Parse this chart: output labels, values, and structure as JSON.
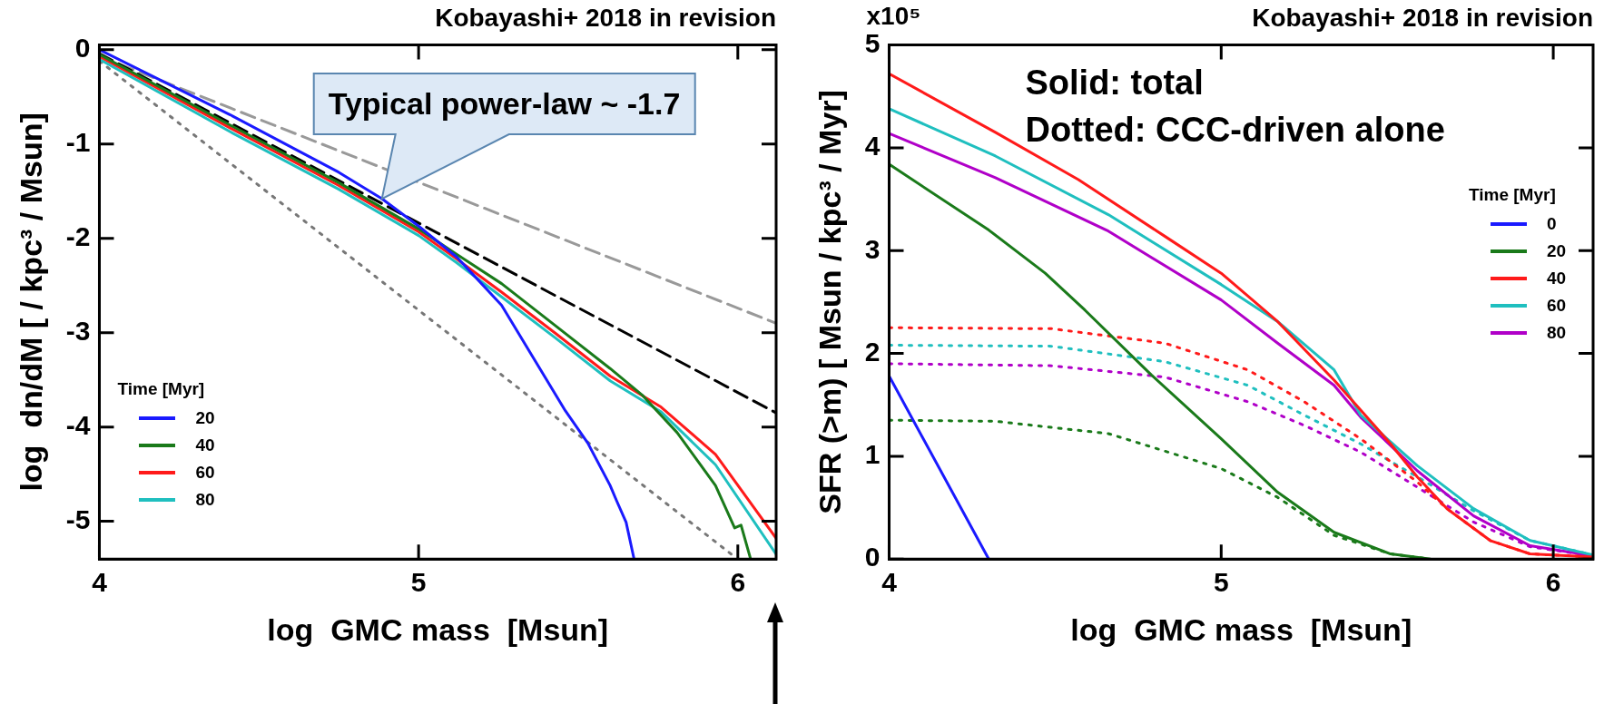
{
  "chart_data": [
    {
      "type": "line",
      "title": "Kobayashi+ 2018 in revision",
      "xlabel": "log  GMC mass  [Msun]",
      "ylabel": "log  dn/dM [ / kpc³ / Msun]",
      "legend_title": "Time [Myr]",
      "legend": "bottom left",
      "marker": "none",
      "xlim": [
        4,
        6.12
      ],
      "ylim": [
        -5.4,
        0.05
      ],
      "xticks": [
        4,
        5,
        6
      ],
      "yticks": [
        0,
        -1,
        -2,
        -3,
        -4,
        -5
      ],
      "annotations": [
        {
          "text": "Typical power-law ~ -1.7",
          "x": 4.885,
          "y": -1.58
        }
      ],
      "series": [
        {
          "name": "20",
          "color": "#1a1aff",
          "line_style": "solid",
          "x": [
            4,
            4.41,
            4.75,
            4.885,
            5.0,
            5.12,
            5.26,
            5.36,
            5.46,
            5.53,
            5.6,
            5.62,
            5.65,
            5.675
          ],
          "values": [
            0,
            -0.69,
            -1.3,
            -1.58,
            -1.87,
            -2.2,
            -2.71,
            -3.27,
            -3.83,
            -4.17,
            -4.62,
            -4.78,
            -5.01,
            -5.4
          ]
        },
        {
          "name": "40",
          "color": "#1a7a1a",
          "line_style": "solid",
          "x": [
            4,
            4.41,
            4.75,
            5,
            5.12,
            5.26,
            5.43,
            5.6,
            5.7,
            5.81,
            5.93,
            5.99,
            6.01,
            6.04
          ],
          "values": [
            -0.05,
            -0.8,
            -1.41,
            -1.9,
            -2.17,
            -2.48,
            -2.93,
            -3.38,
            -3.66,
            -4.06,
            -4.62,
            -5.07,
            -5.04,
            -5.4
          ]
        },
        {
          "name": "60",
          "color": "#ff1a1a",
          "line_style": "solid",
          "x": [
            4,
            4.41,
            4.75,
            5,
            5.12,
            5.26,
            5.43,
            5.6,
            5.76,
            5.93,
            6.12
          ],
          "values": [
            -0.07,
            -0.83,
            -1.44,
            -1.93,
            -2.22,
            -2.57,
            -3.01,
            -3.46,
            -3.79,
            -4.29,
            -5.18
          ]
        },
        {
          "name": "80",
          "color": "#1fbfbf",
          "line_style": "solid",
          "x": [
            4,
            4.41,
            4.75,
            5,
            5.12,
            5.26,
            5.43,
            5.6,
            5.76,
            5.93,
            6.12
          ],
          "values": [
            -0.1,
            -0.87,
            -1.48,
            -1.97,
            -2.26,
            -2.62,
            -3.06,
            -3.51,
            -3.84,
            -4.4,
            -5.35
          ]
        },
        {
          "color": "#000000",
          "line_style": "dashed",
          "x": [
            4,
            6.12
          ],
          "values": [
            -0.04,
            -3.85
          ]
        },
        {
          "color": "#999999",
          "line_style": "dashed",
          "x": [
            4,
            6.12
          ],
          "values": [
            -0.07,
            -2.9
          ]
        },
        {
          "color": "#777777",
          "line_style": "dotted",
          "x": [
            4,
            5.98
          ],
          "values": [
            -0.12,
            -5.35
          ]
        }
      ]
    },
    {
      "type": "line",
      "title": "Kobayashi+ 2018 in revision",
      "xlabel": "log  GMC mass  [Msun]",
      "ylabel": "SFR (>m) [ Msun / kpc³ / Myr]",
      "legend_title": "Time [Myr]",
      "legend": "right",
      "marker": "none",
      "xlim": [
        4,
        6.12
      ],
      "ylim": [
        0,
        5
      ],
      "xticks": [
        4,
        5,
        6
      ],
      "yticks": [
        0,
        1,
        2,
        3,
        4,
        5
      ],
      "annotations": [
        "x10⁵",
        "Solid: total",
        "Dotted: CCC-driven alone"
      ],
      "series": [
        {
          "name": "0",
          "color": "#1a1aff",
          "line_style": "solid",
          "x": [
            4,
            4.3
          ],
          "values": [
            1.78,
            0
          ]
        },
        {
          "name": "20",
          "color": "#1a7a1a",
          "line_style": "solid",
          "x": [
            4,
            4.3,
            4.47,
            4.59,
            4.79,
            5,
            5.17,
            5.34,
            5.51,
            5.63
          ],
          "values": [
            3.84,
            3.2,
            2.78,
            2.42,
            1.79,
            1.17,
            0.65,
            0.26,
            0.05,
            0
          ]
        },
        {
          "name": "40",
          "color": "#ff1a1a",
          "line_style": "solid",
          "x": [
            4,
            4.32,
            4.57,
            4.83,
            5,
            5.17,
            5.34,
            5.42,
            5.51,
            5.59,
            5.68,
            5.81,
            5.93,
            6.12
          ],
          "values": [
            4.72,
            4.15,
            3.69,
            3.14,
            2.78,
            2.31,
            1.74,
            1.45,
            1.12,
            0.8,
            0.49,
            0.18,
            0.05,
            0.02
          ]
        },
        {
          "name": "60",
          "color": "#1fbfbf",
          "line_style": "solid",
          "x": [
            4,
            4.32,
            4.66,
            5,
            5.17,
            5.34,
            5.42,
            5.59,
            5.76,
            5.93,
            6.12
          ],
          "values": [
            4.38,
            3.92,
            3.35,
            2.67,
            2.31,
            1.84,
            1.4,
            0.91,
            0.49,
            0.18,
            0.04
          ]
        },
        {
          "name": "80",
          "color": "#b000c8",
          "line_style": "solid",
          "x": [
            4,
            4.32,
            4.66,
            5,
            5.17,
            5.34,
            5.42,
            5.59,
            5.76,
            5.93,
            6.12
          ],
          "values": [
            4.14,
            3.71,
            3.19,
            2.52,
            2.1,
            1.69,
            1.38,
            0.86,
            0.42,
            0.13,
            0.03
          ]
        },
        {
          "color": "#1a7a1a",
          "line_style": "dotted",
          "x": [
            4,
            4.32,
            4.66,
            5,
            5.17,
            5.34,
            5.51,
            5.63
          ],
          "values": [
            1.35,
            1.34,
            1.22,
            0.88,
            0.6,
            0.23,
            0.05,
            0
          ]
        },
        {
          "color": "#ff1a1a",
          "line_style": "dotted",
          "x": [
            4,
            4.49,
            4.83,
            5.08,
            5.25,
            5.42,
            5.59,
            5.68,
            5.81,
            5.93,
            6.12
          ],
          "values": [
            2.25,
            2.24,
            2.1,
            1.84,
            1.53,
            1.17,
            0.75,
            0.49,
            0.18,
            0.05,
            0.02
          ]
        },
        {
          "color": "#1fbfbf",
          "line_style": "dotted",
          "x": [
            4,
            4.49,
            4.83,
            5.08,
            5.25,
            5.42,
            5.59,
            5.76,
            5.93,
            6.12
          ],
          "values": [
            2.08,
            2.07,
            1.92,
            1.69,
            1.4,
            1.12,
            0.8,
            0.47,
            0.18,
            0.04
          ]
        },
        {
          "color": "#b000c8",
          "line_style": "dotted",
          "x": [
            4,
            4.49,
            4.83,
            5.08,
            5.25,
            5.42,
            5.59,
            5.76,
            5.93,
            6.12
          ],
          "values": [
            1.9,
            1.88,
            1.77,
            1.53,
            1.3,
            1.04,
            0.7,
            0.36,
            0.12,
            0.03
          ]
        }
      ]
    }
  ]
}
